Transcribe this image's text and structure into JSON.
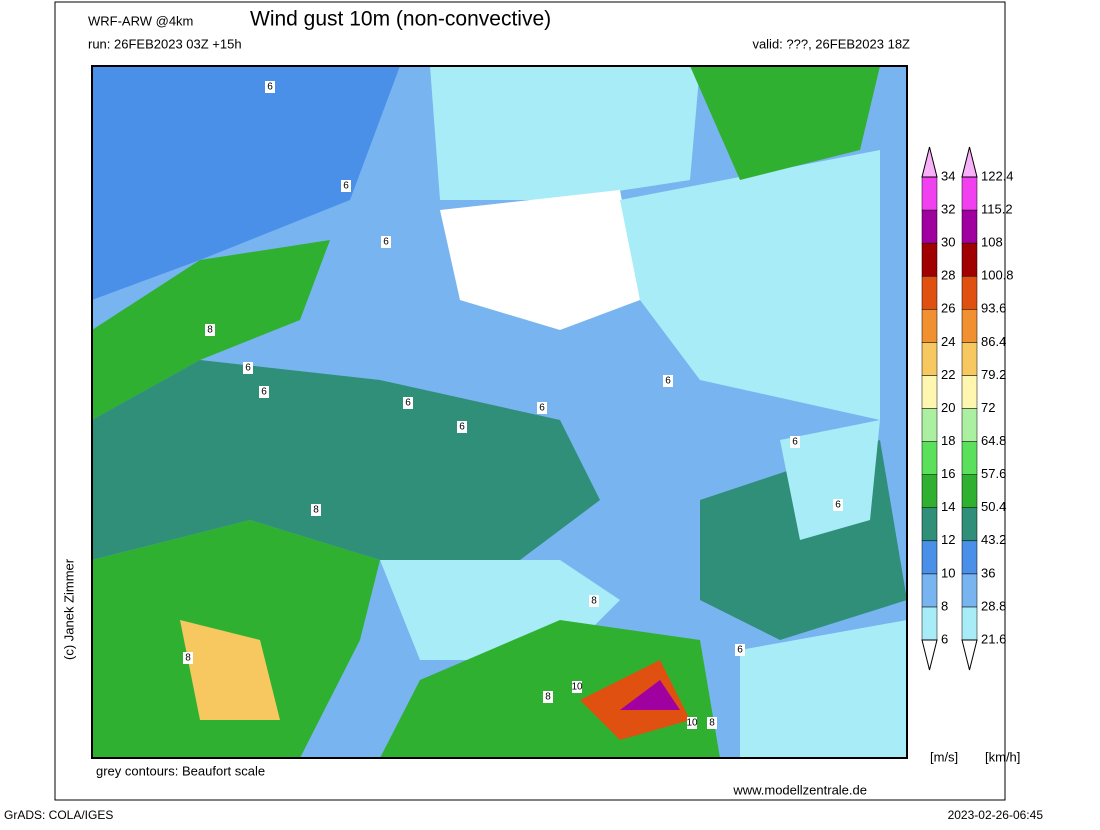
{
  "header": {
    "model": "WRF-ARW @4km",
    "title": "Wind gust 10m (non-convective)",
    "run": "run: 26FEB2023 03Z +15h",
    "valid": "valid: ???, 26FEB2023 18Z"
  },
  "colorbar": {
    "ms_labels": [
      6,
      8,
      10,
      12,
      14,
      16,
      18,
      20,
      22,
      24,
      26,
      28,
      30,
      32,
      34
    ],
    "kmh_labels": [
      21.6,
      28.8,
      36,
      43.2,
      50.4,
      57.6,
      64.8,
      72,
      79.2,
      86.4,
      93.6,
      100.8,
      108,
      115.2,
      122.4
    ],
    "colors": [
      "#a8ecf8",
      "#78b4f0",
      "#4a90e8",
      "#2f8f78",
      "#30b030",
      "#5ae05a",
      "#aaf0a0",
      "#fff6b0",
      "#f8c860",
      "#f09030",
      "#e05010",
      "#a00000",
      "#a000a0",
      "#f040f0"
    ],
    "below_color": "#ffffff",
    "above_color": "#f8b0f8",
    "unit_ms": "[m/s]",
    "unit_kmh": "[km/h]"
  },
  "map": {
    "contour_labels": [
      6,
      6,
      6,
      8,
      6,
      6,
      6,
      6,
      8,
      6,
      6,
      6,
      8,
      6,
      8,
      8,
      10,
      10,
      8,
      6
    ]
  },
  "footer": {
    "contours_note": "grey contours: Beaufort scale",
    "website": "www.modellzentrale.de",
    "copyright": "(c) Janek Zimmer",
    "grads": "GrADS: COLA/IGES",
    "timestamp": "2023-02-26-06:45"
  }
}
